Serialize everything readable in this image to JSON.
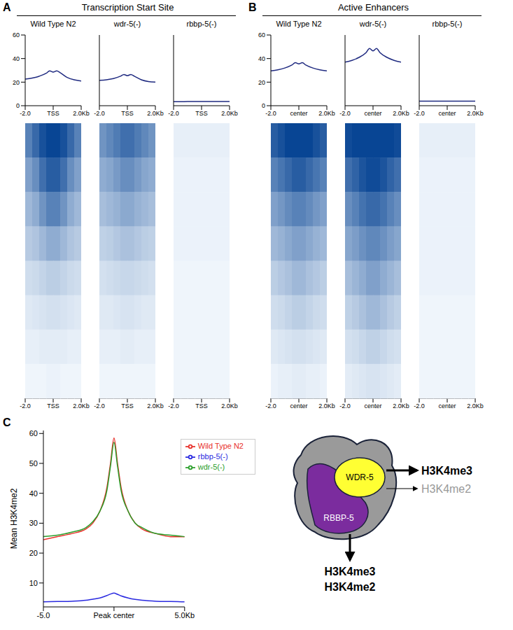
{
  "groups": [
    {
      "letter": "A",
      "title": "Transcription Start Site",
      "type": "profile_heatmap",
      "xlim": [
        -2,
        2
      ],
      "xticks": [
        {
          "value": -2,
          "label": "-2.0"
        },
        {
          "value": 0,
          "label": "TSS"
        },
        {
          "value": 2,
          "label": "2.0Kb"
        }
      ],
      "ylim": [
        0,
        60
      ],
      "yticks": [
        0,
        20,
        40,
        60
      ],
      "x": [
        -2,
        -1.5,
        -1,
        -0.5,
        -0.25,
        0,
        0.25,
        0.5,
        1,
        1.5,
        2
      ],
      "heatmap_x": [
        -1.75,
        -1.25,
        -0.75,
        -0.25,
        0.25,
        0.75,
        1.25,
        1.75
      ],
      "samples": [
        {
          "name": "Wild Type N2",
          "color": "#1f2a80",
          "values": [
            22.5,
            23.5,
            25,
            27.5,
            29.5,
            28.5,
            29.5,
            28,
            24,
            22,
            21
          ],
          "heatmap": [
            [
              40,
              48,
              56,
              60,
              60,
              56,
              48,
              40
            ],
            [
              30,
              36,
              46,
              52,
              52,
              46,
              36,
              30
            ],
            [
              22,
              26,
              34,
              40,
              40,
              34,
              26,
              22
            ],
            [
              16,
              18,
              22,
              26,
              26,
              22,
              18,
              16
            ],
            [
              10,
              11,
              13,
              15,
              15,
              13,
              11,
              10
            ],
            [
              6,
              7,
              8,
              9,
              9,
              8,
              7,
              6
            ],
            [
              4,
              4,
              5,
              5,
              5,
              5,
              4,
              4
            ],
            [
              2,
              2,
              2,
              3,
              3,
              2,
              2,
              2
            ]
          ]
        },
        {
          "name": "wdr-5(-)",
          "color": "#1f2a80",
          "values": [
            21.5,
            22,
            23,
            25,
            26.5,
            25.5,
            26.5,
            25,
            22,
            20.5,
            20
          ],
          "heatmap": [
            [
              34,
              38,
              42,
              46,
              46,
              42,
              38,
              34
            ],
            [
              26,
              28,
              32,
              36,
              36,
              32,
              28,
              26
            ],
            [
              20,
              22,
              24,
              27,
              27,
              24,
              22,
              20
            ],
            [
              14,
              15,
              17,
              19,
              19,
              17,
              15,
              14
            ],
            [
              9,
              10,
              11,
              12,
              12,
              11,
              10,
              9
            ],
            [
              6,
              6,
              7,
              8,
              8,
              7,
              6,
              6
            ],
            [
              4,
              4,
              4,
              5,
              5,
              4,
              4,
              4
            ],
            [
              2,
              2,
              2,
              2,
              2,
              2,
              2,
              2
            ]
          ]
        },
        {
          "name": "rbbp-5(-)",
          "color": "#1f2a80",
          "values": [
            3.4,
            3.4,
            3.5,
            3.5,
            3.6,
            3.6,
            3.6,
            3.5,
            3.5,
            3.5,
            3.5
          ],
          "heatmap": [
            [
              4,
              4,
              4,
              4,
              4,
              4,
              4,
              4
            ],
            [
              3,
              3,
              3,
              3,
              3,
              3,
              3,
              3
            ],
            [
              3,
              3,
              3,
              3,
              3,
              3,
              3,
              3
            ],
            [
              3,
              3,
              3,
              3,
              3,
              3,
              3,
              3
            ],
            [
              2,
              2,
              2,
              2,
              2,
              2,
              2,
              2
            ],
            [
              2,
              2,
              2,
              2,
              2,
              2,
              2,
              2
            ],
            [
              2,
              2,
              2,
              2,
              2,
              2,
              2,
              2
            ],
            [
              2,
              2,
              2,
              2,
              2,
              2,
              2,
              2
            ]
          ]
        }
      ]
    },
    {
      "letter": "B",
      "title": "Active Enhancers",
      "type": "profile_heatmap",
      "xlim": [
        -2,
        2
      ],
      "xticks": [
        {
          "value": -2,
          "label": "-2.0"
        },
        {
          "value": 0,
          "label": "center"
        },
        {
          "value": 2,
          "label": "2.0Kb"
        }
      ],
      "ylim": [
        0,
        60
      ],
      "yticks": [
        0,
        20,
        40,
        60
      ],
      "x": [
        -2,
        -1.5,
        -1,
        -0.5,
        -0.25,
        0,
        0.25,
        0.5,
        1,
        1.5,
        2
      ],
      "heatmap_x": [
        -1.75,
        -1.25,
        -0.75,
        -0.25,
        0.25,
        0.75,
        1.25,
        1.75
      ],
      "samples": [
        {
          "name": "Wild Type N2",
          "color": "#1f2a80",
          "values": [
            29.5,
            30.5,
            32,
            34.5,
            36.5,
            35.5,
            36.5,
            34.5,
            32,
            30.5,
            29.5
          ],
          "heatmap": [
            [
              52,
              56,
              60,
              62,
              62,
              60,
              56,
              52
            ],
            [
              40,
              44,
              48,
              52,
              52,
              48,
              44,
              40
            ],
            [
              30,
              33,
              37,
              40,
              40,
              37,
              33,
              30
            ],
            [
              22,
              24,
              27,
              30,
              30,
              27,
              24,
              22
            ],
            [
              15,
              17,
              19,
              22,
              22,
              19,
              17,
              15
            ],
            [
              10,
              11,
              13,
              15,
              15,
              13,
              11,
              10
            ],
            [
              6,
              7,
              8,
              9,
              9,
              8,
              7,
              6
            ],
            [
              3,
              4,
              4,
              5,
              5,
              4,
              4,
              3
            ]
          ]
        },
        {
          "name": "wdr-5(-)",
          "color": "#1f2a80",
          "values": [
            37,
            38.5,
            41,
            45,
            48.5,
            46.5,
            48.5,
            45,
            41,
            38.5,
            37
          ],
          "heatmap": [
            [
              58,
              62,
              66,
              68,
              68,
              66,
              62,
              58
            ],
            [
              46,
              50,
              55,
              58,
              58,
              55,
              50,
              46
            ],
            [
              36,
              40,
              45,
              48,
              48,
              45,
              40,
              36
            ],
            [
              28,
              31,
              35,
              38,
              38,
              35,
              31,
              28
            ],
            [
              20,
              23,
              26,
              30,
              30,
              26,
              23,
              20
            ],
            [
              14,
              16,
              19,
              22,
              22,
              19,
              16,
              14
            ],
            [
              9,
              10,
              12,
              14,
              14,
              12,
              10,
              9
            ],
            [
              5,
              6,
              7,
              8,
              8,
              7,
              6,
              5
            ]
          ]
        },
        {
          "name": "rbbp-5(-)",
          "color": "#1f2a80",
          "values": [
            3.8,
            3.8,
            3.8,
            3.9,
            3.9,
            3.9,
            3.9,
            3.9,
            3.8,
            3.8,
            3.8
          ],
          "heatmap": [
            [
              4,
              4,
              4,
              4,
              4,
              4,
              4,
              4
            ],
            [
              3,
              3,
              3,
              3,
              3,
              3,
              3,
              3
            ],
            [
              3,
              3,
              3,
              3,
              3,
              3,
              3,
              3
            ],
            [
              3,
              3,
              3,
              3,
              3,
              3,
              3,
              3
            ],
            [
              3,
              3,
              3,
              3,
              3,
              3,
              3,
              3
            ],
            [
              2,
              2,
              2,
              2,
              2,
              2,
              2,
              2
            ],
            [
              2,
              2,
              2,
              2,
              2,
              2,
              2,
              2
            ],
            [
              2,
              2,
              2,
              2,
              2,
              2,
              2,
              2
            ]
          ]
        }
      ]
    }
  ],
  "chart_data": {
    "letter": "C",
    "type": "line",
    "y_label": "Mean H3K4me2",
    "xlim": [
      -5,
      5
    ],
    "xticks": [
      {
        "value": -5,
        "label": "-5.0"
      },
      {
        "value": 0,
        "label": "Peak center"
      },
      {
        "value": 5,
        "label": "5.0Kb"
      }
    ],
    "ylim": [
      2,
      61
    ],
    "yticks": [
      10,
      20,
      30,
      40,
      50,
      60
    ],
    "legend": "upper right",
    "x": [
      -5,
      -4,
      -3,
      -2,
      -1.5,
      -1,
      -0.5,
      -0.25,
      0,
      0.25,
      0.5,
      1,
      1.5,
      2,
      3,
      4,
      5
    ],
    "series": [
      {
        "name": "Wild Type N2",
        "color": "#e8302a",
        "values": [
          24.5,
          25.5,
          26.5,
          28,
          30,
          34,
          42,
          50,
          58.5,
          50,
          42,
          34,
          30,
          28,
          26.5,
          25.5,
          25.5
        ]
      },
      {
        "name": "wdr-5(-)",
        "color": "#2a9e2a",
        "values": [
          25.5,
          26,
          27,
          28.5,
          30.5,
          34,
          41,
          49,
          57,
          49,
          41,
          34,
          30,
          28.5,
          26.5,
          26,
          25.5
        ]
      },
      {
        "name": "rbbp-5(-)",
        "color": "#2a2ae0",
        "values": [
          3.7,
          3.8,
          3.9,
          4.2,
          4.6,
          5,
          5.8,
          6.3,
          6.6,
          6.2,
          5.7,
          5,
          4.5,
          4.2,
          3.9,
          3.8,
          3.7
        ]
      }
    ]
  },
  "diagram": {
    "nodes": {
      "wdr5": "WDR-5",
      "rbbp5": "RBBP-5"
    },
    "wdr5_outputs": [
      {
        "label": "H3K4me3",
        "strong": true
      },
      {
        "label": "H3K4me2",
        "strong": false
      }
    ],
    "rbbp5_outputs": [
      "H3K4me3",
      "H3K4me2"
    ]
  }
}
